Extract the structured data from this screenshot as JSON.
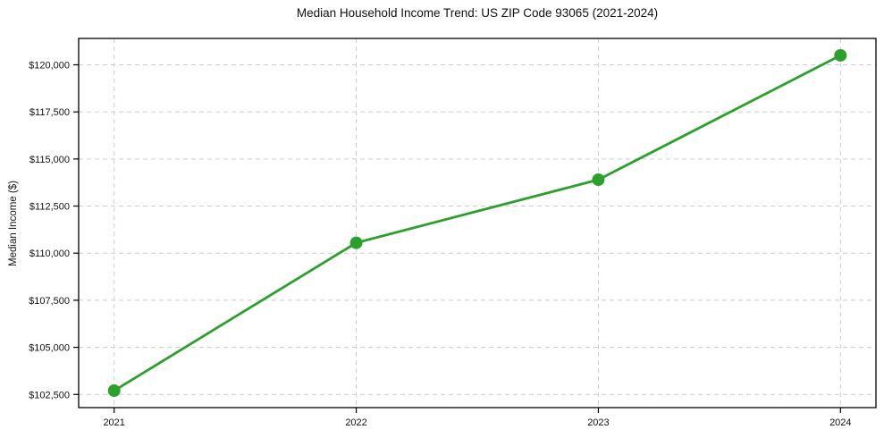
{
  "chart_data": {
    "type": "line",
    "title": "Median Household Income Trend: US ZIP Code 93065 (2021-2024)",
    "xlabel": "",
    "ylabel": "Median Income ($)",
    "categories": [
      "2021",
      "2022",
      "2023",
      "2024"
    ],
    "series": [
      {
        "values": [
          102700,
          110550,
          113900,
          120500
        ],
        "color": "#2ca02c",
        "marker": "circle"
      }
    ],
    "ylim": [
      101800,
      121400
    ],
    "yticks": [
      {
        "value": 102500,
        "label": "$102,500"
      },
      {
        "value": 105000,
        "label": "$105,000"
      },
      {
        "value": 107500,
        "label": "$107,500"
      },
      {
        "value": 110000,
        "label": "$110,000"
      },
      {
        "value": 112500,
        "label": "$112,500"
      },
      {
        "value": 115000,
        "label": "$115,000"
      },
      {
        "value": 117500,
        "label": "$117,500"
      },
      {
        "value": 120000,
        "label": "$120,000"
      }
    ],
    "grid": true,
    "grid_color": "#cccccc",
    "grid_style": "dashed",
    "frame_color": "#000000",
    "background": "#ffffff",
    "legend_position": "none"
  }
}
